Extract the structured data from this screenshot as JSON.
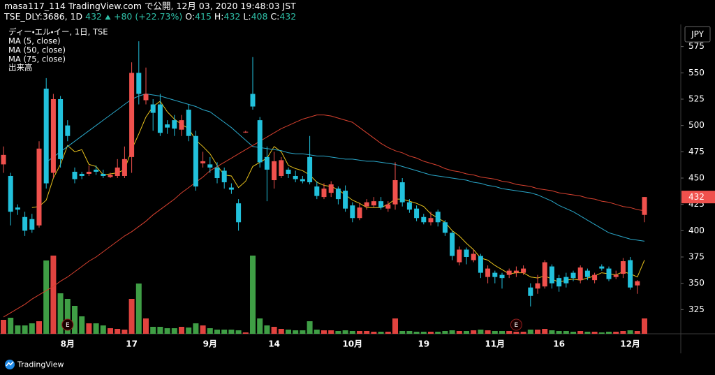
{
  "header": {
    "line1": "masa117_114 TradingView.com で公開, 12月 03, 2020 19:48:03 JST",
    "symbol": "TSE_DLY:3686, 1D",
    "change": "+80 (+22.73%)",
    "o_label": "O:",
    "h_label": "H:",
    "l_label": "L:",
    "c_label": "C:",
    "watermark": "TradingView"
  },
  "chart_data": {
    "type": "candlestick",
    "title": "ディー・エル・イー, 1日, TSE",
    "volume_name": "出来高",
    "currency": "JPY",
    "up_color": "#f0514d",
    "down_color": "#22c1dc",
    "volume_up_color": "#e0433f",
    "volume_down_color": "#3f9e45",
    "ylim": [
      302,
      596
    ],
    "yticks": [
      325,
      350,
      375,
      400,
      425,
      450,
      475,
      500,
      525,
      550,
      575
    ],
    "grid": false,
    "categories": [
      null,
      null,
      null,
      null,
      null,
      null,
      null,
      null,
      null,
      "8月",
      null,
      null,
      null,
      null,
      null,
      null,
      null,
      null,
      "17",
      null,
      null,
      null,
      null,
      null,
      null,
      null,
      null,
      null,
      null,
      "9月",
      null,
      null,
      null,
      null,
      null,
      null,
      null,
      null,
      "14",
      null,
      null,
      null,
      null,
      null,
      null,
      null,
      null,
      null,
      null,
      "10月",
      null,
      null,
      null,
      null,
      null,
      null,
      null,
      null,
      null,
      "19",
      null,
      null,
      null,
      null,
      null,
      null,
      null,
      null,
      null,
      "11月",
      null,
      null,
      null,
      null,
      null,
      null,
      null,
      null,
      "16",
      null,
      null,
      null,
      null,
      null,
      null,
      null,
      null,
      null,
      "12月",
      null,
      null
    ],
    "open": [
      463,
      452,
      422,
      413,
      411,
      405,
      535,
      455,
      525,
      500,
      456,
      454,
      454,
      458,
      454,
      451,
      452,
      452,
      470,
      550,
      524,
      520,
      520,
      501,
      505,
      496,
      515,
      490,
      464,
      463,
      460,
      457,
      441,
      426,
      494,
      530,
      505,
      470,
      448,
      452,
      458,
      452,
      449,
      470,
      442,
      432,
      436,
      440,
      438,
      424,
      412,
      423,
      424,
      428,
      421,
      425,
      446,
      427,
      421,
      413,
      408,
      418,
      408,
      398,
      370,
      382,
      372,
      376,
      356,
      360,
      358,
      358,
      360,
      360,
      346,
      345,
      347,
      366,
      355,
      356,
      360,
      353,
      362,
      353,
      366,
      364,
      356,
      359,
      372,
      348,
      415
    ],
    "high": [
      480,
      455,
      425,
      418,
      416,
      485,
      545,
      530,
      528,
      505,
      460,
      456,
      462,
      462,
      458,
      455,
      468,
      480,
      560,
      580,
      555,
      525,
      530,
      505,
      510,
      510,
      520,
      495,
      475,
      470,
      465,
      460,
      445,
      430,
      495,
      565,
      508,
      480,
      475,
      470,
      460,
      457,
      452,
      490,
      447,
      445,
      447,
      442,
      443,
      427,
      426,
      430,
      432,
      432,
      428,
      465,
      450,
      430,
      424,
      416,
      418,
      420,
      410,
      400,
      385,
      384,
      382,
      378,
      367,
      362,
      360,
      364,
      366,
      367,
      350,
      358,
      372,
      368,
      358,
      360,
      362,
      367,
      364,
      360,
      368,
      366,
      362,
      374,
      375,
      353,
      432
    ],
    "low": [
      455,
      405,
      415,
      395,
      398,
      403,
      440,
      450,
      460,
      485,
      445,
      449,
      452,
      453,
      450,
      450,
      450,
      450,
      455,
      520,
      520,
      495,
      490,
      492,
      490,
      490,
      485,
      438,
      460,
      455,
      445,
      440,
      435,
      400,
      493,
      515,
      460,
      428,
      440,
      450,
      450,
      446,
      445,
      444,
      430,
      430,
      432,
      425,
      418,
      408,
      410,
      420,
      422,
      420,
      418,
      420,
      423,
      417,
      409,
      406,
      405,
      404,
      395,
      372,
      367,
      368,
      370,
      355,
      350,
      350,
      345,
      355,
      356,
      358,
      328,
      340,
      345,
      345,
      342,
      346,
      352,
      350,
      353,
      350,
      362,
      352,
      354,
      355,
      344,
      340,
      408
    ],
    "close": [
      472,
      418,
      420,
      400,
      401,
      478,
      445,
      525,
      468,
      490,
      449,
      452,
      456,
      456,
      452,
      453,
      460,
      468,
      550,
      530,
      530,
      512,
      493,
      498,
      497,
      505,
      490,
      442,
      466,
      460,
      450,
      446,
      439,
      408,
      494,
      518,
      465,
      458,
      466,
      467,
      454,
      449,
      447,
      446,
      433,
      440,
      444,
      430,
      421,
      412,
      422,
      427,
      428,
      422,
      425,
      448,
      427,
      420,
      412,
      408,
      412,
      408,
      398,
      376,
      382,
      375,
      378,
      360,
      364,
      356,
      355,
      362,
      362,
      364,
      338,
      350,
      370,
      350,
      347,
      350,
      355,
      365,
      356,
      358,
      364,
      354,
      358,
      371,
      346,
      352,
      432
    ],
    "volume": [
      20,
      23,
      12,
      12,
      15,
      18,
      105,
      112,
      58,
      50,
      40,
      25,
      15,
      15,
      12,
      8,
      7,
      6,
      50,
      72,
      22,
      10,
      10,
      8,
      8,
      10,
      9,
      15,
      12,
      8,
      6,
      6,
      6,
      5,
      2,
      112,
      22,
      12,
      10,
      7,
      6,
      5,
      5,
      18,
      6,
      5,
      5,
      4,
      5,
      4,
      4,
      4,
      3,
      3,
      3,
      22,
      4,
      4,
      3,
      3,
      3,
      3,
      4,
      5,
      4,
      4,
      5,
      6,
      5,
      4,
      4,
      4,
      3,
      3,
      6,
      6,
      7,
      5,
      4,
      4,
      3,
      4,
      3,
      3,
      2,
      3,
      3,
      4,
      5,
      4,
      22
    ],
    "lines": [
      {
        "name": "MA (5, close)",
        "color": "#e8c21c",
        "values": [
          null,
          null,
          null,
          null,
          422,
          423,
          429,
          450,
          463,
          481,
          475,
          477,
          463,
          461,
          453,
          454,
          455,
          458,
          477,
          492,
          508,
          518,
          523,
          513,
          506,
          501,
          497,
          486,
          480,
          473,
          462,
          453,
          452,
          441,
          447,
          461,
          465,
          469,
          480,
          475,
          462,
          459,
          457,
          453,
          446,
          443,
          442,
          439,
          434,
          429,
          426,
          422,
          422,
          422,
          425,
          430,
          430,
          428,
          426,
          423,
          416,
          412,
          408,
          400,
          395,
          388,
          382,
          374,
          372,
          367,
          363,
          359,
          360,
          360,
          356,
          355,
          357,
          354,
          351,
          353,
          354,
          353,
          355,
          357,
          360,
          359,
          358,
          361,
          359,
          356,
          372
        ]
      },
      {
        "name": "MA (50, close)",
        "color": "#2aa7c9",
        "values": [
          null,
          null,
          null,
          null,
          null,
          null,
          465,
          470,
          475,
          480,
          485,
          490,
          495,
          500,
          505,
          510,
          515,
          520,
          525,
          528,
          530,
          529,
          528,
          526,
          524,
          522,
          520,
          518,
          515,
          513,
          508,
          503,
          498,
          492,
          486,
          480,
          479,
          478,
          477,
          476,
          474,
          473,
          473,
          472,
          471,
          471,
          470,
          469,
          468,
          468,
          467,
          466,
          466,
          465,
          464,
          463,
          461,
          459,
          457,
          455,
          453,
          452,
          451,
          450,
          449,
          448,
          446,
          445,
          443,
          442,
          440,
          439,
          438,
          437,
          436,
          434,
          431,
          428,
          424,
          421,
          418,
          414,
          410,
          406,
          402,
          398,
          396,
          394,
          392,
          391,
          390
        ]
      },
      {
        "name": "MA (75, close)",
        "color": "#d8412f",
        "values": [
          318,
          322,
          326,
          330,
          335,
          339,
          343,
          347,
          352,
          356,
          361,
          366,
          371,
          375,
          380,
          385,
          390,
          395,
          399,
          404,
          409,
          415,
          420,
          425,
          430,
          436,
          441,
          446,
          451,
          457,
          461,
          465,
          469,
          473,
          477,
          481,
          485,
          489,
          493,
          497,
          500,
          503,
          506,
          508,
          510,
          510,
          509,
          507,
          505,
          503,
          498,
          493,
          488,
          483,
          479,
          476,
          474,
          471,
          469,
          466,
          464,
          462,
          459,
          457,
          456,
          454,
          453,
          451,
          450,
          449,
          447,
          446,
          444,
          443,
          442,
          440,
          439,
          438,
          436,
          435,
          434,
          433,
          431,
          430,
          428,
          427,
          425,
          423,
          422,
          420,
          419
        ]
      }
    ],
    "events": [
      {
        "index": 9,
        "label": "E"
      },
      {
        "index": 72,
        "label": "E"
      }
    ]
  }
}
